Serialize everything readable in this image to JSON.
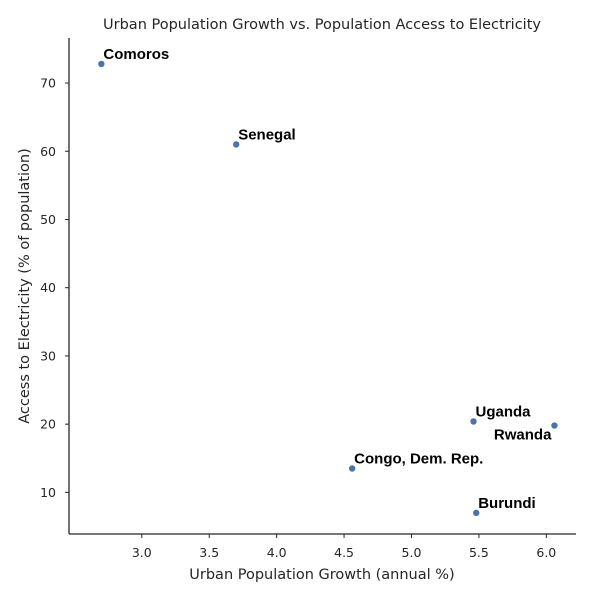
{
  "chart_data": {
    "type": "scatter",
    "title": "Urban Population Growth vs. Population Access to Electricity",
    "xlabel": "Urban Population Growth (annual %)",
    "ylabel": "Access to Electricity (% of population)",
    "xlim": [
      2.46,
      6.22
    ],
    "ylim": [
      3.9,
      76.6
    ],
    "xticks": [
      3.0,
      3.5,
      4.0,
      4.5,
      5.0,
      5.5,
      6.0
    ],
    "xtick_labels": [
      "3.0",
      "3.5",
      "4.0",
      "4.5",
      "5.0",
      "5.5",
      "6.0"
    ],
    "yticks": [
      10,
      20,
      30,
      40,
      50,
      60,
      70
    ],
    "ytick_labels": [
      "10",
      "20",
      "30",
      "40",
      "50",
      "60",
      "70"
    ],
    "grid": false,
    "marker_color": "#4c72b0",
    "label_color": "#000000",
    "points": [
      {
        "label": "Comoros",
        "x": 2.7,
        "y": 72.8,
        "label_pos": "above-right"
      },
      {
        "label": "Senegal",
        "x": 3.7,
        "y": 61.0,
        "label_pos": "above-right"
      },
      {
        "label": "Uganda",
        "x": 5.46,
        "y": 20.4,
        "label_pos": "above-right"
      },
      {
        "label": "Rwanda",
        "x": 6.06,
        "y": 19.8,
        "label_pos": "below-left"
      },
      {
        "label": "Congo, Dem. Rep.",
        "x": 4.56,
        "y": 13.5,
        "label_pos": "above-right"
      },
      {
        "label": "Burundi",
        "x": 5.48,
        "y": 7.0,
        "label_pos": "above-right"
      }
    ]
  }
}
